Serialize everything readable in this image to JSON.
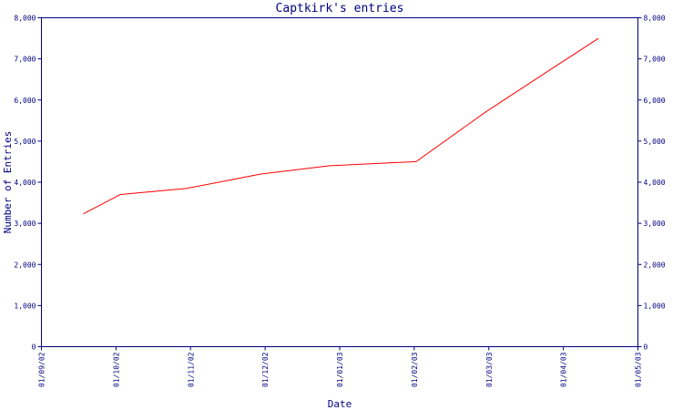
{
  "chart_data": {
    "type": "line",
    "title": "Captkirk's entries",
    "xlabel": "Date",
    "ylabel": "Number of Entries",
    "x_ticks": [
      "01/09/02",
      "01/10/02",
      "01/11/02",
      "01/12/02",
      "01/01/03",
      "01/02/03",
      "01/03/03",
      "01/04/03",
      "01/05/03"
    ],
    "y_ticks": [
      "0",
      "1,000",
      "2,000",
      "3,000",
      "4,000",
      "5,000",
      "6,000",
      "7,000",
      "8,000"
    ],
    "y_ticks_right": [
      "0",
      "1,000",
      "2,000",
      "3,000",
      "4,000",
      "5,000",
      "6,000",
      "7,000",
      "8,000"
    ],
    "xlim": [
      "2002-09-01",
      "2003-05-01"
    ],
    "ylim": [
      0,
      8000
    ],
    "grid": false,
    "series": [
      {
        "color": "#ff0000",
        "x": [
          "2002-09-18",
          "2002-10-03",
          "2002-10-30",
          "2002-11-29",
          "2002-12-27",
          "2003-01-31",
          "2003-02-28",
          "2003-03-28",
          "2003-04-15"
        ],
        "y": [
          3230,
          3700,
          3850,
          4200,
          4400,
          4500,
          5700,
          6800,
          7500
        ]
      }
    ],
    "colors": {
      "axis": "#000080",
      "text": "#000080",
      "line": "#ff0000"
    }
  }
}
